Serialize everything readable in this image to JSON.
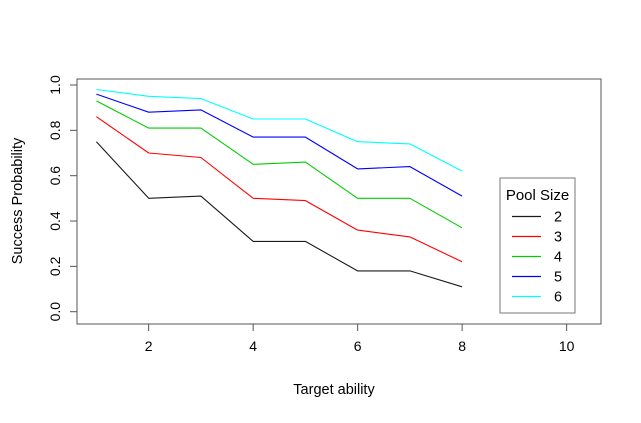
{
  "chart_data": {
    "type": "line",
    "title": "",
    "xlabel": "Target ability",
    "ylabel": "Success Probability",
    "x": [
      1,
      2,
      3,
      4,
      5,
      6,
      7,
      8
    ],
    "xticks": [
      "2",
      "4",
      "6",
      "8",
      "10"
    ],
    "yticks": [
      "0.0",
      "0.2",
      "0.4",
      "0.6",
      "0.8",
      "1.0"
    ],
    "xlim": [
      1,
      10
    ],
    "ylim": [
      0.0,
      1.0
    ],
    "grid": false,
    "legend": {
      "title": "Pool Size",
      "position": "inside-right"
    },
    "series": [
      {
        "name": "2",
        "color": "#1a1a1a",
        "values": [
          0.75,
          0.5,
          0.51,
          0.31,
          0.31,
          0.18,
          0.18,
          0.11
        ]
      },
      {
        "name": "3",
        "color": "#ff0000",
        "values": [
          0.86,
          0.7,
          0.68,
          0.5,
          0.49,
          0.36,
          0.33,
          0.22
        ]
      },
      {
        "name": "4",
        "color": "#00cd00",
        "values": [
          0.93,
          0.81,
          0.81,
          0.65,
          0.66,
          0.5,
          0.5,
          0.37
        ]
      },
      {
        "name": "5",
        "color": "#0000ff",
        "values": [
          0.96,
          0.88,
          0.89,
          0.77,
          0.77,
          0.63,
          0.64,
          0.51
        ]
      },
      {
        "name": "6",
        "color": "#00ffff",
        "values": [
          0.98,
          0.95,
          0.94,
          0.85,
          0.85,
          0.75,
          0.74,
          0.62
        ]
      }
    ],
    "axis_color": "#555555"
  }
}
